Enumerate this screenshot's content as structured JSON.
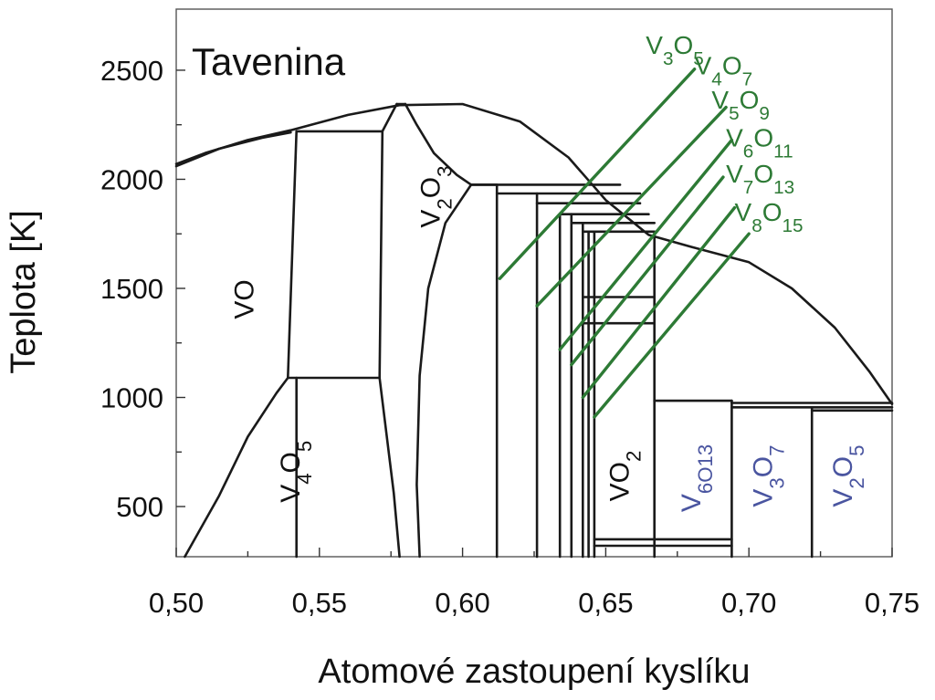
{
  "chart_data": {
    "type": "line",
    "xlabel": "Atomové zastoupení kyslíku",
    "ylabel": "Teplota [K]",
    "xlim": [
      0.5,
      0.75
    ],
    "ylim": [
      270,
      2780
    ],
    "x_ticks": [
      "0,50",
      "0,55",
      "0,60",
      "0,65",
      "0,70",
      "0,75"
    ],
    "x_tick_values": [
      0.5,
      0.55,
      0.6,
      0.65,
      0.7,
      0.75
    ],
    "y_ticks": [
      "500",
      "1000",
      "1500",
      "2000",
      "2500"
    ],
    "y_tick_values": [
      500,
      1000,
      1500,
      2000,
      2500
    ],
    "grid": false,
    "melt_label": "Tavenina",
    "colors": {
      "black": "#1a1a1a",
      "green": "#2d7a35",
      "blue": "#4a55a0"
    },
    "regions": [
      {
        "label": "VO",
        "x": 0.527,
        "y": 1450,
        "rotate": true,
        "color": "black",
        "sub": []
      },
      {
        "label": "V4O5",
        "x": 0.543,
        "y": 660,
        "rotate": true,
        "color": "black",
        "sub": [
          1,
          3
        ]
      },
      {
        "label": "V2O3",
        "x": 0.592,
        "y": 1920,
        "rotate": true,
        "color": "black",
        "sub": [
          1,
          3
        ]
      },
      {
        "label": "VO2",
        "x": 0.658,
        "y": 640,
        "rotate": true,
        "color": "black",
        "sub": [
          2
        ]
      },
      {
        "label": "V6O13",
        "x": 0.683,
        "y": 630,
        "rotate": true,
        "color": "blue",
        "sub": [
          1,
          2,
          3,
          4
        ]
      },
      {
        "label": "V3O7",
        "x": 0.708,
        "y": 640,
        "rotate": true,
        "color": "blue",
        "sub": [
          1,
          3
        ]
      },
      {
        "label": "V2O5",
        "x": 0.736,
        "y": 640,
        "rotate": true,
        "color": "blue",
        "sub": [
          1,
          3
        ]
      }
    ],
    "green_labels": [
      {
        "label": "V3O5",
        "x": 0.664,
        "y": 2575,
        "sub": [
          1,
          3
        ]
      },
      {
        "label": "V4O7",
        "x": 0.681,
        "y": 2480,
        "sub": [
          1,
          3
        ]
      },
      {
        "label": "V5O9",
        "x": 0.687,
        "y": 2325,
        "sub": [
          1,
          3
        ]
      },
      {
        "label": "V6O11",
        "x": 0.692,
        "y": 2150,
        "sub": [
          1,
          3,
          4
        ]
      },
      {
        "label": "V7O13",
        "x": 0.692,
        "y": 1985,
        "sub": [
          1,
          3,
          4
        ]
      },
      {
        "label": "V8O15",
        "x": 0.695,
        "y": 1810,
        "sub": [
          1,
          3,
          4
        ]
      }
    ],
    "green_lines": [
      [
        [
          0.613,
          1545
        ],
        [
          0.681,
          2505
        ]
      ],
      [
        [
          0.626,
          1420
        ],
        [
          0.692,
          2330
        ]
      ],
      [
        [
          0.634,
          1220
        ],
        [
          0.694,
          2180
        ]
      ],
      [
        [
          0.638,
          1150
        ],
        [
          0.691,
          2010
        ]
      ],
      [
        [
          0.642,
          1000
        ],
        [
          0.695,
          1870
        ]
      ],
      [
        [
          0.646,
          910
        ],
        [
          0.7,
          1750
        ]
      ]
    ],
    "phase_lines": [
      [
        [
          0.5,
          2070
        ],
        [
          0.51,
          2120
        ],
        [
          0.525,
          2180
        ],
        [
          0.54,
          2225
        ],
        [
          0.56,
          2295
        ],
        [
          0.578,
          2340
        ],
        [
          0.6,
          2345
        ],
        [
          0.62,
          2265
        ],
        [
          0.637,
          2100
        ],
        [
          0.65,
          1905
        ],
        [
          0.665,
          1745
        ],
        [
          0.68,
          1690
        ],
        [
          0.7,
          1620
        ],
        [
          0.715,
          1500
        ],
        [
          0.73,
          1320
        ],
        [
          0.742,
          1120
        ],
        [
          0.75,
          970
        ]
      ],
      [
        [
          0.5,
          2060
        ],
        [
          0.515,
          2140
        ],
        [
          0.53,
          2190
        ],
        [
          0.54,
          2215
        ]
      ],
      [
        [
          0.542,
          2220
        ],
        [
          0.572,
          2220
        ],
        [
          0.577,
          2345
        ]
      ],
      [
        [
          0.577,
          2345
        ],
        [
          0.58,
          2345
        ]
      ],
      [
        [
          0.58,
          2345
        ],
        [
          0.584,
          2250
        ],
        [
          0.59,
          2120
        ],
        [
          0.598,
          2020
        ],
        [
          0.603,
          1975
        ],
        [
          0.612,
          1975
        ]
      ],
      [
        [
          0.542,
          2220
        ],
        [
          0.539,
          1090
        ]
      ],
      [
        [
          0.572,
          2220
        ],
        [
          0.571,
          1090
        ]
      ],
      [
        [
          0.539,
          1090
        ],
        [
          0.571,
          1090
        ]
      ],
      [
        [
          0.571,
          1090
        ],
        [
          0.576,
          560
        ],
        [
          0.578,
          270
        ]
      ],
      [
        [
          0.503,
          270
        ],
        [
          0.515,
          550
        ],
        [
          0.525,
          820
        ],
        [
          0.535,
          1020
        ],
        [
          0.539,
          1090
        ]
      ],
      [
        [
          0.542,
          1090
        ],
        [
          0.542,
          270
        ]
      ],
      [
        [
          0.585,
          270
        ],
        [
          0.584,
          600
        ],
        [
          0.585,
          1100
        ],
        [
          0.588,
          1500
        ],
        [
          0.594,
          1800
        ],
        [
          0.603,
          1975
        ]
      ],
      [
        [
          0.603,
          1975
        ],
        [
          0.655,
          1975
        ]
      ],
      [
        [
          0.612,
          1975
        ],
        [
          0.612,
          270
        ]
      ],
      [
        [
          0.612,
          1935
        ],
        [
          0.662,
          1935
        ]
      ],
      [
        [
          0.626,
          1935
        ],
        [
          0.626,
          270
        ]
      ],
      [
        [
          0.626,
          1890
        ],
        [
          0.662,
          1890
        ]
      ],
      [
        [
          0.634,
          1840
        ],
        [
          0.665,
          1840
        ]
      ],
      [
        [
          0.634,
          1840
        ],
        [
          0.634,
          270
        ]
      ],
      [
        [
          0.638,
          1840
        ],
        [
          0.638,
          270
        ]
      ],
      [
        [
          0.638,
          1800
        ],
        [
          0.667,
          1800
        ]
      ],
      [
        [
          0.642,
          1800
        ],
        [
          0.642,
          270
        ]
      ],
      [
        [
          0.642,
          1760
        ],
        [
          0.667,
          1760
        ]
      ],
      [
        [
          0.644,
          1760
        ],
        [
          0.644,
          270
        ]
      ],
      [
        [
          0.646,
          1760
        ],
        [
          0.646,
          270
        ]
      ],
      [
        [
          0.642,
          1460
        ],
        [
          0.667,
          1460
        ]
      ],
      [
        [
          0.642,
          1340
        ],
        [
          0.667,
          1340
        ]
      ],
      [
        [
          0.667,
          1760
        ],
        [
          0.667,
          270
        ]
      ],
      [
        [
          0.646,
          350
        ],
        [
          0.694,
          350
        ]
      ],
      [
        [
          0.646,
          320
        ],
        [
          0.694,
          320
        ]
      ],
      [
        [
          0.667,
          985
        ],
        [
          0.694,
          985
        ]
      ],
      [
        [
          0.694,
          985
        ],
        [
          0.694,
          270
        ]
      ],
      [
        [
          0.694,
          975
        ],
        [
          0.75,
          975
        ]
      ],
      [
        [
          0.694,
          955
        ],
        [
          0.75,
          955
        ]
      ],
      [
        [
          0.722,
          955
        ],
        [
          0.722,
          270
        ]
      ],
      [
        [
          0.722,
          940
        ],
        [
          0.75,
          940
        ]
      ]
    ]
  }
}
